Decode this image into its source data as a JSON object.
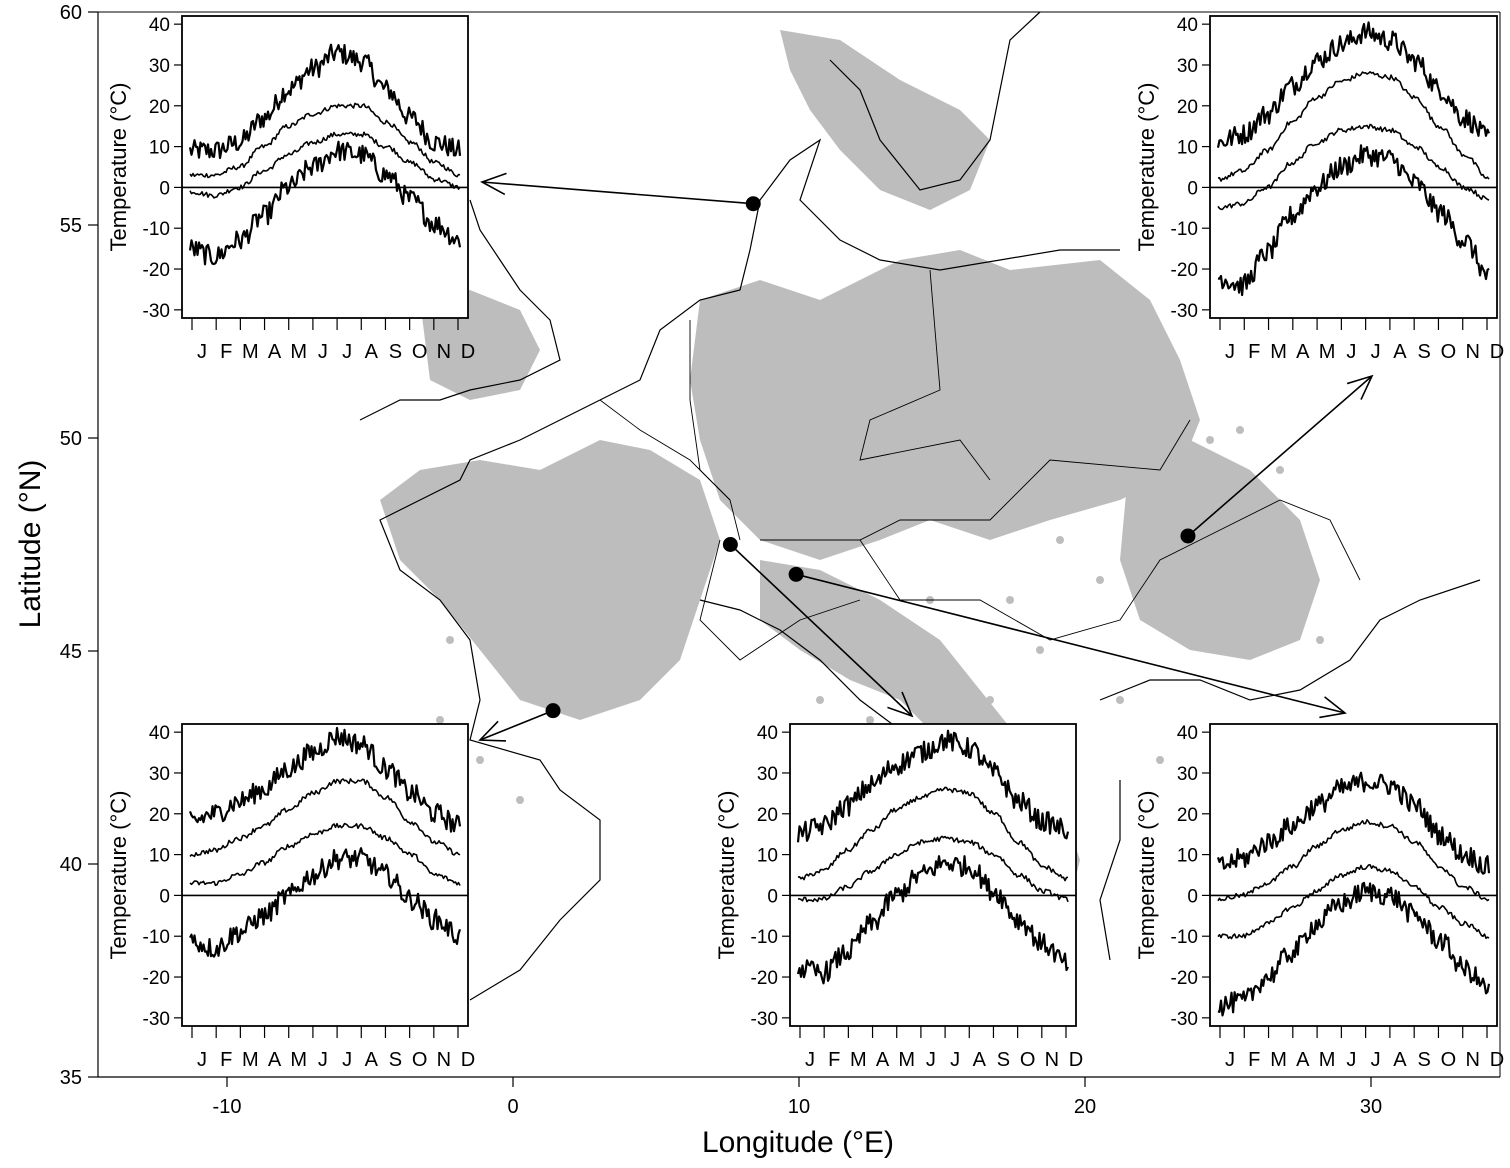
{
  "map": {
    "xlabel": "Longitude (°E)",
    "ylabel": "Latitude (°N)",
    "lon_range": [
      -15,
      35
    ],
    "lat_range": [
      35,
      60
    ],
    "lon_ticks": [
      "-10",
      "0",
      "10",
      "20",
      "30"
    ],
    "lat_ticks": [
      "35",
      "40",
      "45",
      "50",
      "55",
      "60"
    ],
    "land_color": "#ffffff",
    "coverage_color": "#bdbdbd",
    "coastline_color": "#000000",
    "sites": [
      {
        "id": "denmark",
        "lon": 8.4,
        "lat": 55.5
      },
      {
        "id": "romania",
        "lon": 23.6,
        "lat": 47.7
      },
      {
        "id": "switzerland-west",
        "lon": 7.6,
        "lat": 47.5
      },
      {
        "id": "switzerland-east",
        "lon": 9.9,
        "lat": 46.8
      },
      {
        "id": "southwest-france",
        "lon": 1.4,
        "lat": 43.6
      }
    ]
  },
  "inset_common": {
    "ylabel": "Temperature (°C)",
    "yticks": [
      "40",
      "30",
      "20",
      "10",
      "0",
      "-10",
      "-20",
      "-30"
    ],
    "months": [
      "J",
      "F",
      "M",
      "A",
      "M",
      "J",
      "J",
      "A",
      "S",
      "O",
      "N",
      "D"
    ]
  },
  "chart_data": [
    {
      "type": "line",
      "site": "denmark",
      "ylabel": "Temperature (°C)",
      "ylim": [
        -32,
        42
      ],
      "x": [
        "J",
        "F",
        "M",
        "A",
        "M",
        "J",
        "J",
        "A",
        "S",
        "O",
        "N",
        "D"
      ],
      "series": [
        {
          "values": [
            9,
            9,
            11,
            17,
            24,
            29,
            33,
            31,
            24,
            17,
            11,
            9
          ]
        },
        {
          "values": [
            3,
            3,
            5,
            10,
            15,
            18,
            20,
            20,
            16,
            11,
            6,
            3
          ]
        },
        {
          "values": [
            -1,
            -2,
            0,
            4,
            8,
            11,
            13,
            13,
            10,
            6,
            2,
            0
          ]
        },
        {
          "values": [
            -15,
            -17,
            -13,
            -7,
            0,
            5,
            9,
            8,
            3,
            -3,
            -9,
            -13
          ]
        }
      ]
    },
    {
      "type": "line",
      "site": "romania",
      "ylabel": "Temperature (°C)",
      "ylim": [
        -32,
        42
      ],
      "x": [
        "J",
        "F",
        "M",
        "A",
        "M",
        "J",
        "J",
        "A",
        "S",
        "O",
        "N",
        "D"
      ],
      "series": [
        {
          "values": [
            11,
            13,
            18,
            25,
            31,
            35,
            38,
            36,
            31,
            24,
            17,
            12
          ]
        },
        {
          "values": [
            2,
            4,
            9,
            16,
            22,
            26,
            28,
            27,
            22,
            15,
            8,
            2
          ]
        },
        {
          "values": [
            -5,
            -4,
            0,
            6,
            11,
            14,
            15,
            14,
            10,
            5,
            0,
            -3
          ]
        },
        {
          "values": [
            -22,
            -24,
            -16,
            -7,
            0,
            5,
            8,
            7,
            1,
            -6,
            -13,
            -22
          ]
        }
      ]
    },
    {
      "type": "line",
      "site": "southwest-france",
      "ylabel": "Temperature (°C)",
      "ylim": [
        -32,
        42
      ],
      "x": [
        "J",
        "F",
        "M",
        "A",
        "M",
        "J",
        "J",
        "A",
        "S",
        "O",
        "N",
        "D"
      ],
      "series": [
        {
          "values": [
            18,
            20,
            23,
            26,
            31,
            35,
            39,
            37,
            31,
            25,
            20,
            17
          ]
        },
        {
          "values": [
            10,
            11,
            14,
            17,
            21,
            25,
            28,
            28,
            24,
            18,
            13,
            10
          ]
        },
        {
          "values": [
            3,
            3,
            5,
            8,
            12,
            15,
            17,
            17,
            14,
            10,
            5,
            3
          ]
        },
        {
          "values": [
            -11,
            -13,
            -9,
            -5,
            0,
            5,
            9,
            9,
            5,
            -1,
            -6,
            -10
          ]
        }
      ]
    },
    {
      "type": "line",
      "site": "switzerland-west",
      "ylabel": "Temperature (°C)",
      "ylim": [
        -32,
        42
      ],
      "x": [
        "J",
        "F",
        "M",
        "A",
        "M",
        "J",
        "J",
        "A",
        "S",
        "O",
        "N",
        "D"
      ],
      "series": [
        {
          "values": [
            15,
            17,
            22,
            27,
            32,
            35,
            38,
            36,
            30,
            23,
            18,
            16
          ]
        },
        {
          "values": [
            4,
            6,
            11,
            16,
            21,
            24,
            26,
            25,
            20,
            13,
            7,
            4
          ]
        },
        {
          "values": [
            -1,
            -1,
            2,
            6,
            10,
            13,
            14,
            13,
            10,
            5,
            1,
            -1
          ]
        },
        {
          "values": [
            -18,
            -19,
            -14,
            -7,
            0,
            5,
            8,
            7,
            1,
            -6,
            -12,
            -17
          ]
        }
      ]
    },
    {
      "type": "line",
      "site": "switzerland-east",
      "ylabel": "Temperature (°C)",
      "ylim": [
        -32,
        42
      ],
      "x": [
        "J",
        "F",
        "M",
        "A",
        "M",
        "J",
        "J",
        "A",
        "S",
        "O",
        "N",
        "D"
      ],
      "series": [
        {
          "values": [
            7,
            9,
            13,
            17,
            22,
            26,
            28,
            27,
            22,
            15,
            10,
            7
          ]
        },
        {
          "values": [
            -1,
            0,
            3,
            7,
            12,
            16,
            18,
            17,
            13,
            7,
            2,
            -1
          ]
        },
        {
          "values": [
            -10,
            -10,
            -7,
            -3,
            1,
            5,
            7,
            6,
            2,
            -3,
            -7,
            -10
          ]
        },
        {
          "values": [
            -27,
            -26,
            -20,
            -14,
            -7,
            -2,
            1,
            0,
            -5,
            -11,
            -18,
            -23
          ]
        }
      ]
    }
  ]
}
